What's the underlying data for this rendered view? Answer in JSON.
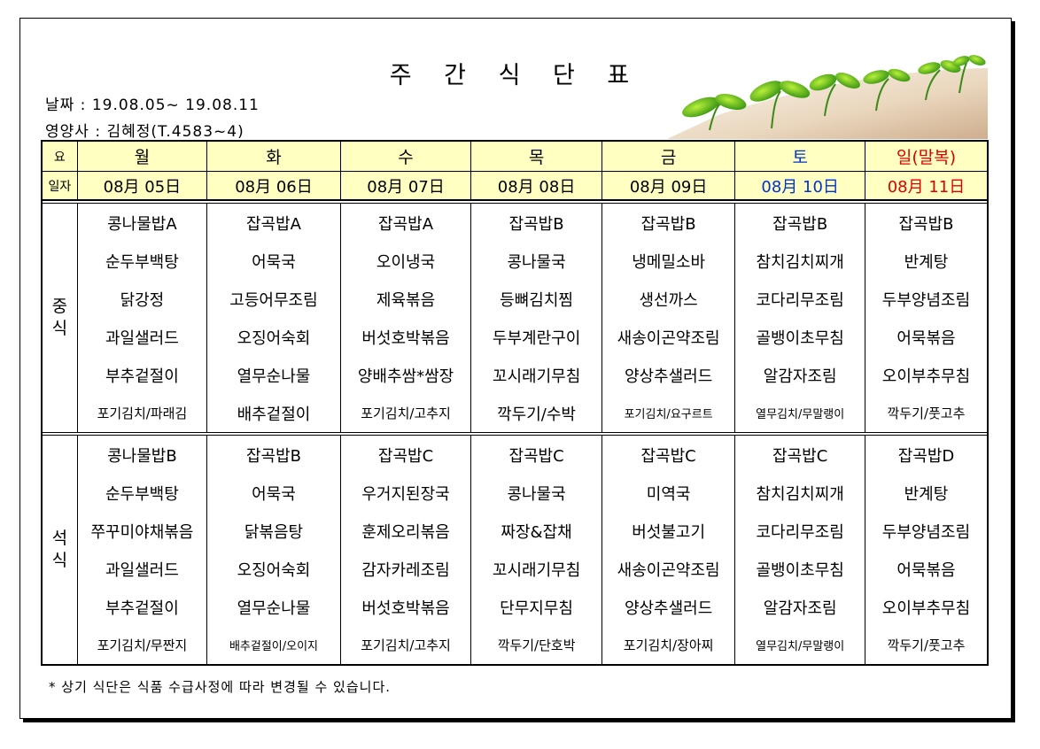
{
  "title": "주 간 식 단 표",
  "date_range": "날짜 : 19.08.05~ 19.08.11",
  "nutritionist": "영양사 : 김혜정(T.4583~4)",
  "header": {
    "day_label": "요",
    "date_label": "일자",
    "days": [
      "월",
      "화",
      "수",
      "목",
      "금",
      "토",
      "일(말복)"
    ],
    "dates": [
      "08月 05日",
      "08月 06日",
      "08月 07日",
      "08月 08日",
      "08月 09日",
      "08月 10日",
      "08月 11日"
    ]
  },
  "colors": {
    "saturday": "#0033cc",
    "sunday": "#e00000",
    "header_bg": "#ffffc2"
  },
  "lunch": {
    "label": "중\n식",
    "rows": [
      [
        "콩나물밥A",
        "잡곡밥A",
        "잡곡밥A",
        "잡곡밥B",
        "잡곡밥B",
        "잡곡밥B",
        "잡곡밥B"
      ],
      [
        "순두부백탕",
        "어묵국",
        "오이냉국",
        "콩나물국",
        "냉메밀소바",
        "참치김치찌개",
        "반계탕"
      ],
      [
        "닭강정",
        "고등어무조림",
        "제육볶음",
        "등뼈김치찜",
        "생선까스",
        "코다리무조림",
        "두부양념조림"
      ],
      [
        "과일샐러드",
        "오징어숙회",
        "버섯호박볶음",
        "두부계란구이",
        "새송이곤약조림",
        "골뱅이초무침",
        "어묵볶음"
      ],
      [
        "부추겉절이",
        "열무순나물",
        "양배추쌈*쌈장",
        "꼬시래기무침",
        "양상추샐러드",
        "알감자조림",
        "오이부추무침"
      ],
      [
        "포기김치/파래김",
        "배추겉절이",
        "포기김치/고추지",
        "깍두기/수박",
        "포기김치/요구르트",
        "열무김치/무말랭이",
        "깍두기/풋고추"
      ]
    ]
  },
  "dinner": {
    "label": "석\n식",
    "rows": [
      [
        "콩나물밥B",
        "잡곡밥B",
        "잡곡밥C",
        "잡곡밥C",
        "잡곡밥C",
        "잡곡밥C",
        "잡곡밥D"
      ],
      [
        "순두부백탕",
        "어묵국",
        "우거지된장국",
        "콩나물국",
        "미역국",
        "참치김치찌개",
        "반계탕"
      ],
      [
        "쭈꾸미야채볶음",
        "닭볶음탕",
        "훈제오리볶음",
        "짜장&잡채",
        "버섯불고기",
        "코다리무조림",
        "두부양념조림"
      ],
      [
        "과일샐러드",
        "오징어숙회",
        "감자카레조림",
        "꼬시래기무침",
        "새송이곤약조림",
        "골뱅이초무침",
        "어묵볶음"
      ],
      [
        "부추겉절이",
        "열무순나물",
        "버섯호박볶음",
        "단무지무침",
        "양상추샐러드",
        "알감자조림",
        "오이부추무침"
      ],
      [
        "포기김치/무짠지",
        "배추겉절이/오이지",
        "포기김치/고추지",
        "깍두기/단호박",
        "포기김치/장아찌",
        "열무김치/무말랭이",
        "깍두기/풋고추"
      ]
    ]
  },
  "footnote": "* 상기 식단은 식품 수급사정에 따라 변경될 수 있습니다."
}
